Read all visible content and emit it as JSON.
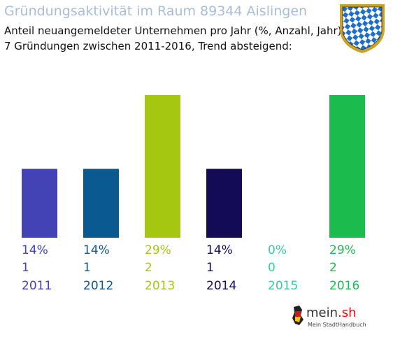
{
  "header": {
    "title": "Gründungsaktivität im Raum 89344 Aislingen",
    "subtitle_line1": "Anteil neuangemeldeter Unternehmen pro Jahr (%, Anzahl, Jahr)",
    "subtitle_line2": "7 Gründungen zwischen 2011-2016, Trend absteigend:"
  },
  "logo": {
    "brand_main": "mein",
    "brand_dot": ".",
    "brand_tld": "sh",
    "tagline": "Mein StadtHandbuch"
  },
  "chart_data": {
    "type": "bar",
    "categories": [
      "2011",
      "2012",
      "2013",
      "2014",
      "2015",
      "2016"
    ],
    "values": [
      14,
      14,
      29,
      14,
      0,
      29
    ],
    "counts": [
      1,
      1,
      2,
      1,
      0,
      2
    ],
    "value_labels": [
      "14%",
      "14%",
      "29%",
      "14%",
      "0%",
      "29%"
    ],
    "count_labels": [
      "1",
      "1",
      "2",
      "1",
      "0",
      "2"
    ],
    "colors": [
      "#4343b5",
      "#0a5a8f",
      "#a6c711",
      "#140b56",
      "#2fd0a0",
      "#1bbb4e"
    ],
    "ylim": [
      0,
      29
    ],
    "grid": false,
    "legend": "none"
  }
}
